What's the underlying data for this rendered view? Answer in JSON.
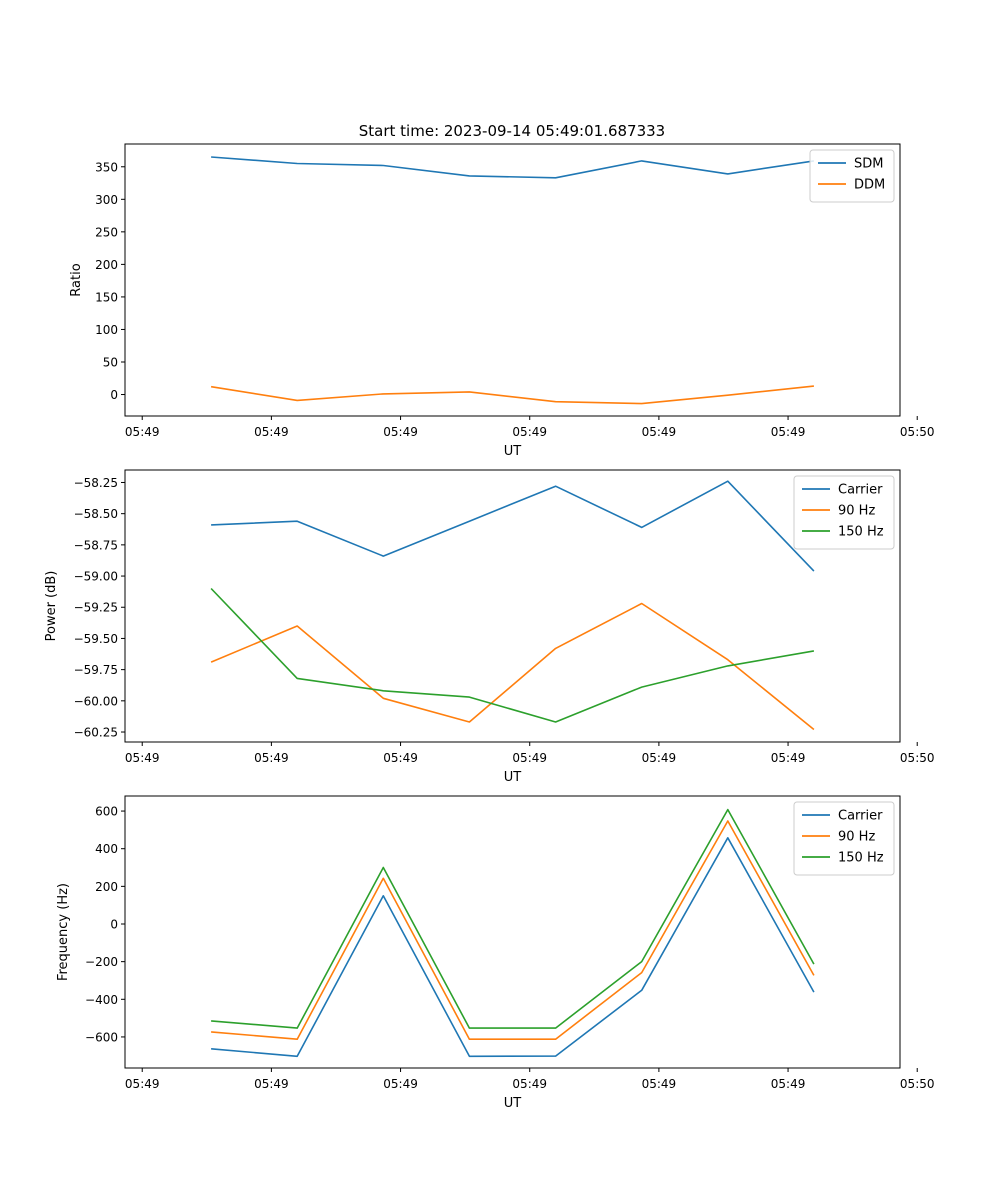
{
  "figure_title": "Start time: 2023-09-14 05:49:01.687333",
  "colors": {
    "blue": "#1f77b4",
    "orange": "#ff7f0e",
    "green": "#2ca02c"
  },
  "chart_data": [
    {
      "type": "line",
      "title": "Start time: 2023-09-14 05:49:01.687333",
      "xlabel": "UT",
      "ylabel": "Ratio",
      "x": [
        1,
        2,
        3,
        4,
        5,
        6,
        7,
        8
      ],
      "xlim": [
        0,
        9
      ],
      "xticks": [
        0.2,
        1.7,
        3.2,
        4.7,
        6.2,
        7.7,
        9.2
      ],
      "xtick_labels": [
        "05:49",
        "05:49",
        "05:49",
        "05:49",
        "05:49",
        "05:49",
        "05:50"
      ],
      "ylim": [
        -33,
        385
      ],
      "yticks": [
        0,
        50,
        100,
        150,
        200,
        250,
        300,
        350
      ],
      "ytick_labels": [
        "0",
        "50",
        "100",
        "150",
        "200",
        "250",
        "300",
        "350"
      ],
      "legend": "top-right",
      "grid": false,
      "series": [
        {
          "name": "SDM",
          "color": "#1f77b4",
          "values": [
            365,
            355,
            352,
            336,
            333,
            359,
            339,
            359
          ]
        },
        {
          "name": "DDM",
          "color": "#ff7f0e",
          "values": [
            12,
            -9,
            1,
            4,
            -11,
            -14,
            -1,
            13
          ]
        }
      ]
    },
    {
      "type": "line",
      "title": "",
      "xlabel": "UT",
      "ylabel": "Power (dB)",
      "x": [
        1,
        2,
        3,
        4,
        5,
        6,
        7,
        8
      ],
      "xlim": [
        0,
        9
      ],
      "xticks": [
        0.2,
        1.7,
        3.2,
        4.7,
        6.2,
        7.7,
        9.2
      ],
      "xtick_labels": [
        "05:49",
        "05:49",
        "05:49",
        "05:49",
        "05:49",
        "05:49",
        "05:50"
      ],
      "ylim": [
        -60.33,
        -58.15
      ],
      "yticks": [
        -58.25,
        -58.5,
        -58.75,
        -59.0,
        -59.25,
        -59.5,
        -59.75,
        -60.0,
        -60.25
      ],
      "ytick_labels": [
        "−58.25",
        "−58.50",
        "−58.75",
        "−59.00",
        "−59.25",
        "−59.50",
        "−59.75",
        "−60.00",
        "−60.25"
      ],
      "legend": "top-right",
      "grid": false,
      "series": [
        {
          "name": "Carrier",
          "color": "#1f77b4",
          "values": [
            -58.59,
            -58.56,
            -58.84,
            -58.56,
            -58.28,
            -58.61,
            -58.24,
            -58.96
          ]
        },
        {
          "name": "90 Hz",
          "color": "#ff7f0e",
          "values": [
            -59.69,
            -59.4,
            -59.98,
            -60.17,
            -59.58,
            -59.22,
            -59.67,
            -60.23
          ]
        },
        {
          "name": "150 Hz",
          "color": "#2ca02c",
          "values": [
            -59.1,
            -59.82,
            -59.92,
            -59.97,
            -60.17,
            -59.89,
            -59.72,
            -59.6
          ]
        }
      ]
    },
    {
      "type": "line",
      "title": "",
      "xlabel": "UT",
      "ylabel": "Frequency (Hz)",
      "x": [
        1,
        2,
        3,
        4,
        5,
        6,
        7,
        8
      ],
      "xlim": [
        0,
        9
      ],
      "xticks": [
        0.2,
        1.7,
        3.2,
        4.7,
        6.2,
        7.7,
        9.2
      ],
      "xtick_labels": [
        "05:49",
        "05:49",
        "05:49",
        "05:49",
        "05:49",
        "05:49",
        "05:50"
      ],
      "ylim": [
        -765,
        680
      ],
      "yticks": [
        -600,
        -400,
        -200,
        0,
        200,
        400,
        600
      ],
      "ytick_labels": [
        "−600",
        "−400",
        "−200",
        "0",
        "200",
        "400",
        "600"
      ],
      "legend": "top-right",
      "grid": false,
      "series": [
        {
          "name": "Carrier",
          "color": "#1f77b4",
          "values": [
            -663,
            -703,
            150,
            -703,
            -702,
            -352,
            458,
            -362
          ]
        },
        {
          "name": "90 Hz",
          "color": "#ff7f0e",
          "values": [
            -573,
            -612,
            243,
            -612,
            -612,
            -258,
            547,
            -273
          ]
        },
        {
          "name": "150 Hz",
          "color": "#2ca02c",
          "values": [
            -515,
            -553,
            300,
            -553,
            -553,
            -200,
            608,
            -213
          ]
        }
      ]
    }
  ]
}
